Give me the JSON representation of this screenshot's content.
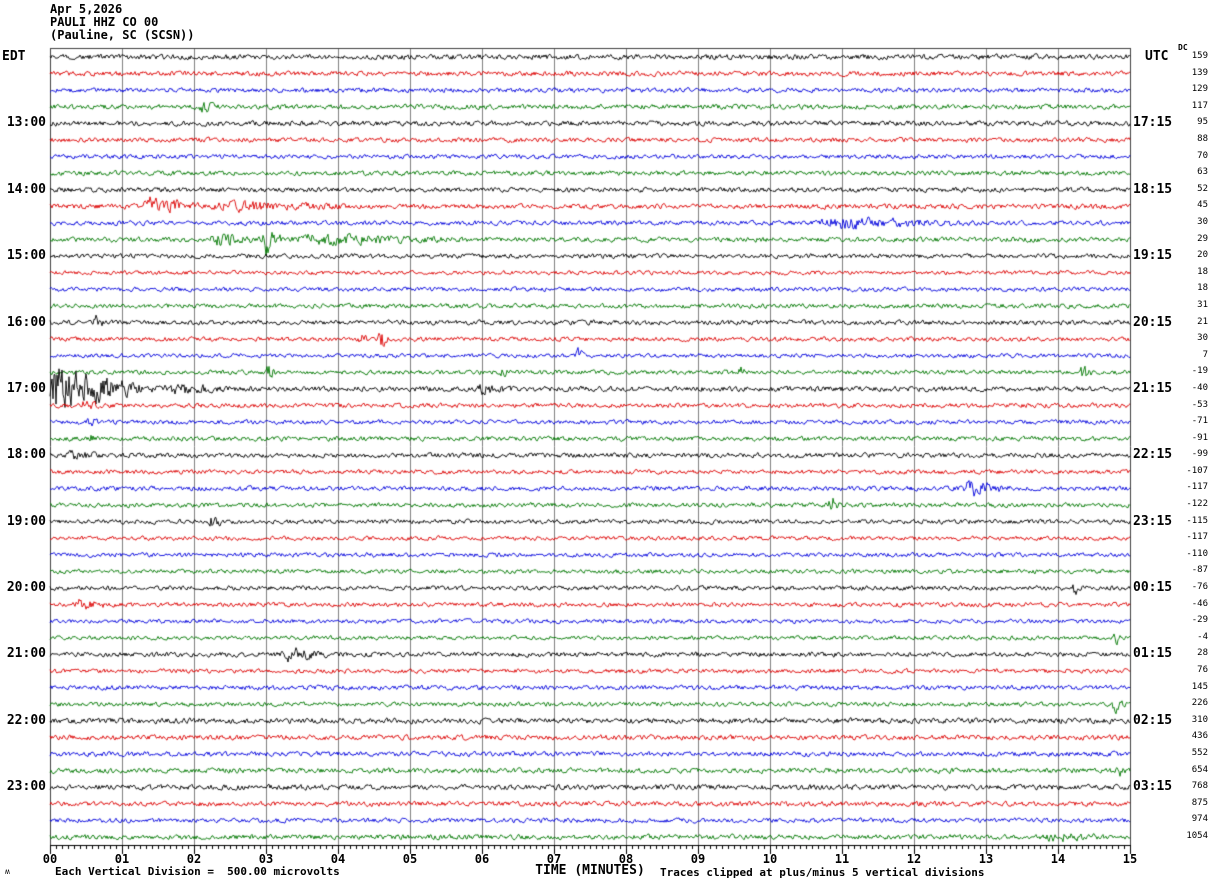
{
  "header": {
    "date": "Apr 5,2026",
    "station": "PAULI HHZ CO 00",
    "location": "(Pauline, SC (SCSN))"
  },
  "axes": {
    "left_timezone_label": "EDT",
    "right_timezone_label": "UTC",
    "dc_column_header": "DC",
    "x_axis_title": "TIME (MINUTES)",
    "x_tick_labels": [
      "00",
      "01",
      "02",
      "03",
      "04",
      "05",
      "06",
      "07",
      "08",
      "09",
      "10",
      "11",
      "12",
      "13",
      "14",
      "15"
    ],
    "footer_left": "Each Vertical Division =  500.00 microvolts",
    "footer_right": "Traces clipped at plus/minus 5 vertical divisions",
    "corner_glyph": "ʍ"
  },
  "chart_data": {
    "type": "line",
    "description": "Helicorder seismogram: 48 consecutive 15-minute trace segments, one per row",
    "x_range_minutes": [
      0,
      15
    ],
    "minor_ticks_per_minute": 12,
    "clip_note_divisions": 5,
    "colors": {
      "black": "#000000",
      "red": "#dd0000",
      "blue": "#0000dd",
      "green": "#007700",
      "grid": "#808080",
      "frame": "#404040",
      "axis": "#000000"
    },
    "rows": [
      {
        "color": "black",
        "dc": 159,
        "left": null,
        "right": null,
        "amp": 1.15
      },
      {
        "color": "red",
        "dc": 139,
        "left": null,
        "right": null,
        "amp": 1.05
      },
      {
        "color": "blue",
        "dc": 129,
        "left": null,
        "right": null,
        "amp": 1.0
      },
      {
        "color": "green",
        "dc": 117,
        "left": null,
        "right": null,
        "amp": 1.05
      },
      {
        "color": "black",
        "dc": 95,
        "left": "13:00",
        "right": "17:15",
        "amp": 1.1
      },
      {
        "color": "red",
        "dc": 88,
        "left": null,
        "right": null,
        "amp": 1.0
      },
      {
        "color": "blue",
        "dc": 70,
        "left": null,
        "right": null,
        "amp": 0.95
      },
      {
        "color": "green",
        "dc": 63,
        "left": null,
        "right": null,
        "amp": 1.0
      },
      {
        "color": "black",
        "dc": 52,
        "left": "14:00",
        "right": "18:15",
        "amp": 1.05
      },
      {
        "color": "red",
        "dc": 45,
        "left": null,
        "right": null,
        "amp": 1.1
      },
      {
        "color": "blue",
        "dc": 30,
        "left": null,
        "right": null,
        "amp": 1.0
      },
      {
        "color": "green",
        "dc": 29,
        "left": null,
        "right": null,
        "amp": 1.05
      },
      {
        "color": "black",
        "dc": 20,
        "left": "15:00",
        "right": "19:15",
        "amp": 1.0
      },
      {
        "color": "red",
        "dc": 18,
        "left": null,
        "right": null,
        "amp": 0.9
      },
      {
        "color": "blue",
        "dc": 18,
        "left": null,
        "right": null,
        "amp": 0.95
      },
      {
        "color": "green",
        "dc": 31,
        "left": null,
        "right": null,
        "amp": 1.0
      },
      {
        "color": "black",
        "dc": 21,
        "left": "16:00",
        "right": "20:15",
        "amp": 1.05
      },
      {
        "color": "red",
        "dc": 30,
        "left": null,
        "right": null,
        "amp": 0.95
      },
      {
        "color": "blue",
        "dc": 7,
        "left": null,
        "right": null,
        "amp": 0.9
      },
      {
        "color": "green",
        "dc": -19,
        "left": null,
        "right": null,
        "amp": 0.95
      },
      {
        "color": "black",
        "dc": -40,
        "left": "17:00",
        "right": "21:15",
        "amp": 1.15
      },
      {
        "color": "red",
        "dc": -53,
        "left": null,
        "right": null,
        "amp": 1.0
      },
      {
        "color": "blue",
        "dc": -71,
        "left": null,
        "right": null,
        "amp": 0.95
      },
      {
        "color": "green",
        "dc": -91,
        "left": null,
        "right": null,
        "amp": 1.0
      },
      {
        "color": "black",
        "dc": -99,
        "left": "18:00",
        "right": "22:15",
        "amp": 1.05
      },
      {
        "color": "red",
        "dc": -107,
        "left": null,
        "right": null,
        "amp": 0.95
      },
      {
        "color": "blue",
        "dc": -117,
        "left": null,
        "right": null,
        "amp": 1.0
      },
      {
        "color": "green",
        "dc": -122,
        "left": null,
        "right": null,
        "amp": 1.0
      },
      {
        "color": "black",
        "dc": -115,
        "left": "19:00",
        "right": "23:15",
        "amp": 1.0
      },
      {
        "color": "red",
        "dc": -117,
        "left": null,
        "right": null,
        "amp": 0.9
      },
      {
        "color": "blue",
        "dc": -110,
        "left": null,
        "right": null,
        "amp": 0.95
      },
      {
        "color": "green",
        "dc": -87,
        "left": null,
        "right": null,
        "amp": 0.95
      },
      {
        "color": "black",
        "dc": -76,
        "left": "20:00",
        "right": "00:15",
        "amp": 1.0
      },
      {
        "color": "red",
        "dc": -46,
        "left": null,
        "right": null,
        "amp": 0.95
      },
      {
        "color": "blue",
        "dc": -29,
        "left": null,
        "right": null,
        "amp": 0.9
      },
      {
        "color": "green",
        "dc": -4,
        "left": null,
        "right": null,
        "amp": 0.9
      },
      {
        "color": "black",
        "dc": 28,
        "left": "21:00",
        "right": "01:15",
        "amp": 1.05
      },
      {
        "color": "red",
        "dc": 76,
        "left": null,
        "right": null,
        "amp": 0.95
      },
      {
        "color": "blue",
        "dc": 145,
        "left": null,
        "right": null,
        "amp": 1.0
      },
      {
        "color": "green",
        "dc": 226,
        "left": null,
        "right": null,
        "amp": 0.95
      },
      {
        "color": "black",
        "dc": 310,
        "left": "22:00",
        "right": "02:15",
        "amp": 1.2
      },
      {
        "color": "red",
        "dc": 436,
        "left": null,
        "right": null,
        "amp": 1.1
      },
      {
        "color": "blue",
        "dc": 552,
        "left": null,
        "right": null,
        "amp": 1.05
      },
      {
        "color": "green",
        "dc": 654,
        "left": null,
        "right": null,
        "amp": 1.1
      },
      {
        "color": "black",
        "dc": 768,
        "left": "23:00",
        "right": "03:15",
        "amp": 1.15
      },
      {
        "color": "red",
        "dc": 875,
        "left": null,
        "right": null,
        "amp": 1.05
      },
      {
        "color": "blue",
        "dc": 974,
        "left": null,
        "right": null,
        "amp": 1.0
      },
      {
        "color": "green",
        "dc": 1054,
        "left": null,
        "right": null,
        "amp": 1.1
      }
    ],
    "events": [
      {
        "row": 4,
        "start": 2.05,
        "end": 2.4,
        "amp": 2.0
      },
      {
        "row": 10,
        "start": 1.25,
        "end": 2.2,
        "amp": 3.6
      },
      {
        "row": 10,
        "start": 2.2,
        "end": 4.3,
        "amp": 1.6
      },
      {
        "row": 11,
        "start": 10.6,
        "end": 12.9,
        "amp": 2.2
      },
      {
        "row": 12,
        "start": 2.2,
        "end": 3.0,
        "amp": 2.4
      },
      {
        "row": 12,
        "start": 2.95,
        "end": 3.25,
        "amp": 7.5
      },
      {
        "row": 12,
        "start": 3.25,
        "end": 6.0,
        "amp": 1.7
      },
      {
        "row": 17,
        "start": 0.6,
        "end": 0.78,
        "amp": 2.4
      },
      {
        "row": 18,
        "start": 4.28,
        "end": 4.45,
        "amp": 4.0
      },
      {
        "row": 18,
        "start": 4.55,
        "end": 4.72,
        "amp": 5.0
      },
      {
        "row": 19,
        "start": 7.3,
        "end": 7.5,
        "amp": 2.6
      },
      {
        "row": 20,
        "start": 3.0,
        "end": 3.15,
        "amp": 4.5
      },
      {
        "row": 20,
        "start": 6.25,
        "end": 6.4,
        "amp": 2.2
      },
      {
        "row": 20,
        "start": 9.55,
        "end": 9.7,
        "amp": 2.4
      },
      {
        "row": 20,
        "start": 14.3,
        "end": 14.5,
        "amp": 4.0
      },
      {
        "row": 21,
        "start": -0.3,
        "end": 1.55,
        "amp": 10.0
      },
      {
        "row": 21,
        "start": 1.55,
        "end": 2.6,
        "amp": 2.0
      },
      {
        "row": 21,
        "start": 5.9,
        "end": 6.5,
        "amp": 1.8
      },
      {
        "row": 22,
        "start": 0.4,
        "end": 0.75,
        "amp": 1.8
      },
      {
        "row": 23,
        "start": 0.5,
        "end": 0.75,
        "amp": 1.5
      },
      {
        "row": 24,
        "start": 0.55,
        "end": 0.75,
        "amp": 1.8
      },
      {
        "row": 25,
        "start": 0.2,
        "end": 0.75,
        "amp": 1.5
      },
      {
        "row": 27,
        "start": 12.65,
        "end": 13.45,
        "amp": 3.2
      },
      {
        "row": 28,
        "start": 10.8,
        "end": 11.0,
        "amp": 4.5
      },
      {
        "row": 29,
        "start": 2.2,
        "end": 2.45,
        "amp": 2.2
      },
      {
        "row": 33,
        "start": 14.2,
        "end": 14.35,
        "amp": 2.4
      },
      {
        "row": 34,
        "start": 0.3,
        "end": 0.95,
        "amp": 1.7
      },
      {
        "row": 36,
        "start": 14.75,
        "end": 14.9,
        "amp": 3.0
      },
      {
        "row": 37,
        "start": 3.2,
        "end": 3.95,
        "amp": 2.8
      },
      {
        "row": 40,
        "start": 14.75,
        "end": 14.95,
        "amp": 3.2
      },
      {
        "row": 44,
        "start": 14.8,
        "end": 14.95,
        "amp": 2.6
      },
      {
        "row": 48,
        "start": 13.8,
        "end": 14.7,
        "amp": 1.4
      }
    ]
  }
}
